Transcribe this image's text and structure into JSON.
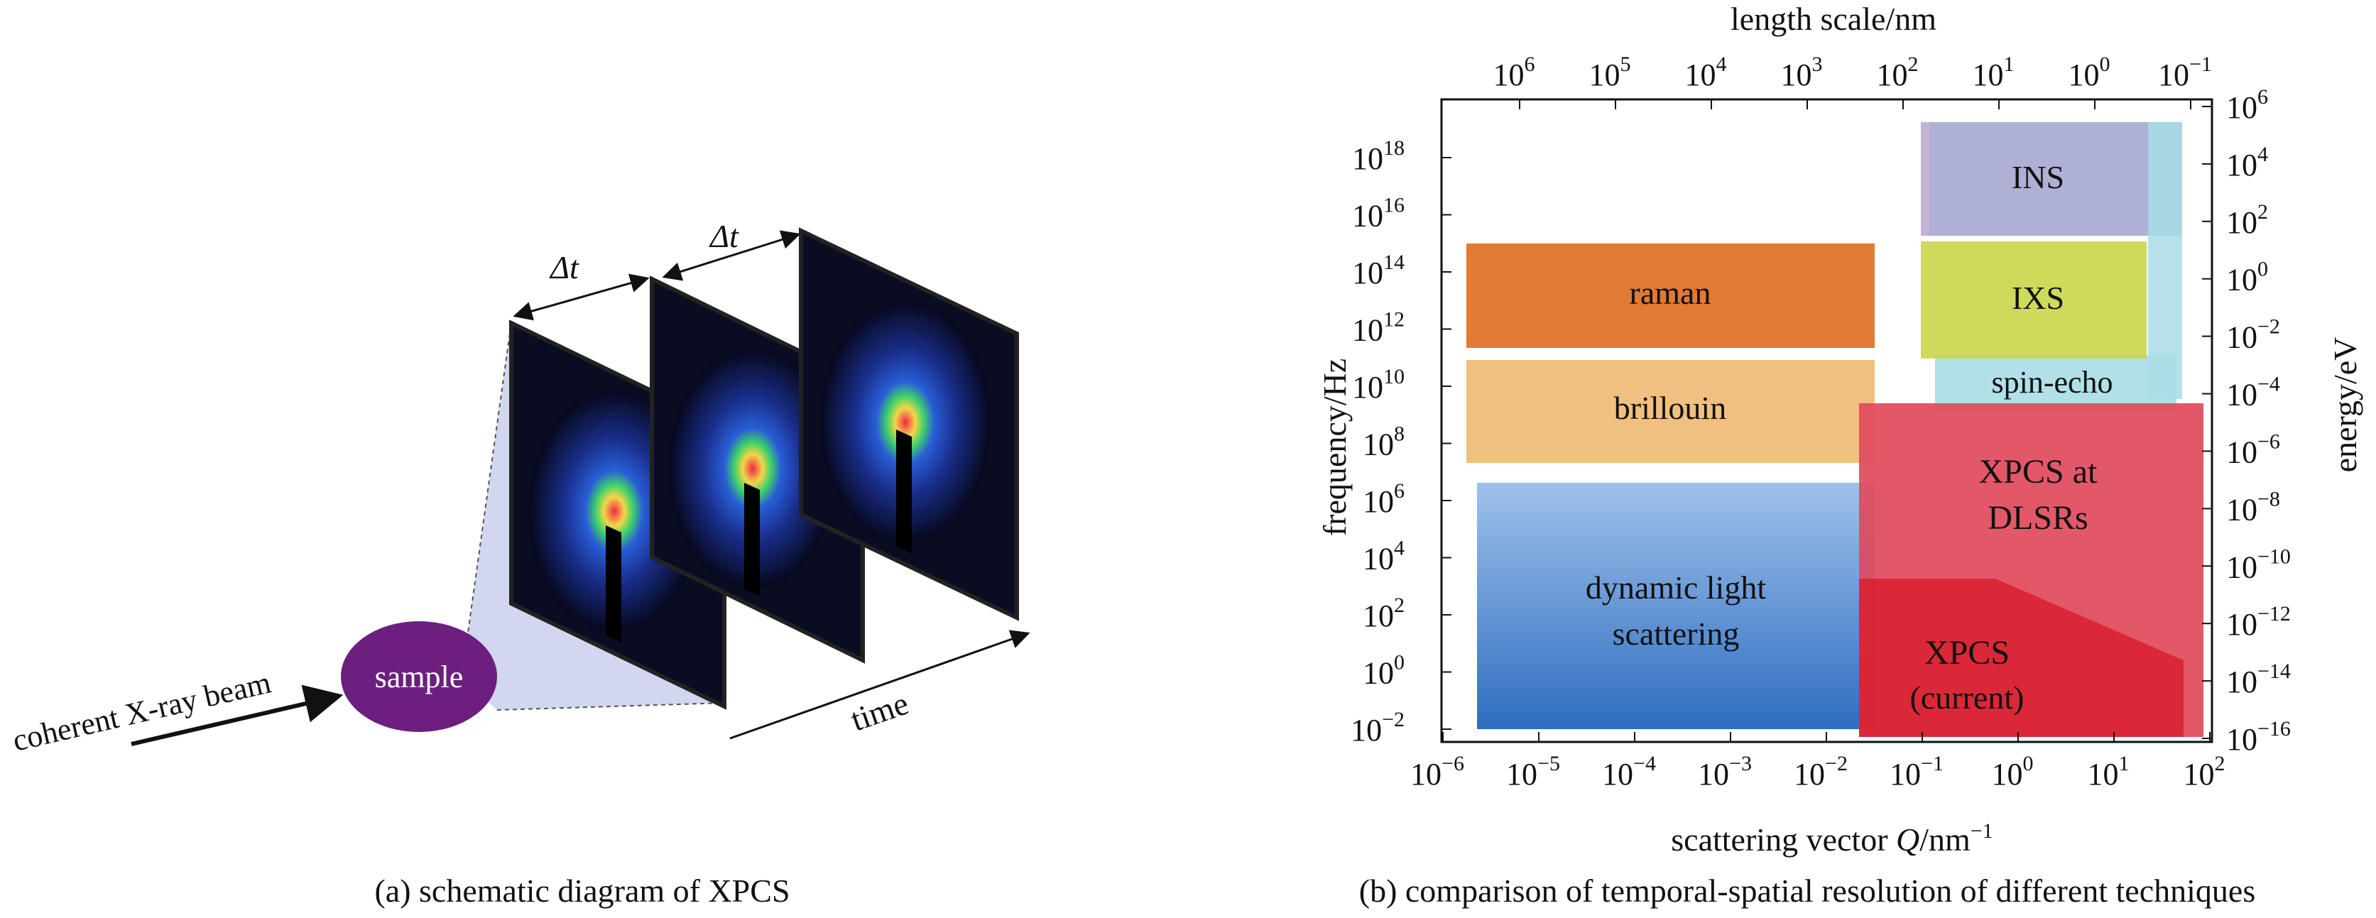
{
  "panel_a": {
    "delta_t": "Δt",
    "sample": "sample",
    "beam": "coherent X-ray beam",
    "time": "time",
    "caption": "(a) schematic diagram of XPCS"
  },
  "panel_b": {
    "top_axis_title": "length scale/nm",
    "bottom_axis_title_prefix": "scattering vector ",
    "bottom_axis_title_var": "Q",
    "bottom_axis_title_unit": "/nm",
    "bottom_axis_title_sup": "−1",
    "left_axis_title": "frequency/Hz",
    "right_axis_title": "energy/eV",
    "caption": "(b) comparison of temporal-spatial resolution of different techniques",
    "bottom_ticks": [
      {
        "m": "10",
        "e": "−6"
      },
      {
        "m": "10",
        "e": "−5"
      },
      {
        "m": "10",
        "e": "−4"
      },
      {
        "m": "10",
        "e": "−3"
      },
      {
        "m": "10",
        "e": "−2"
      },
      {
        "m": "10",
        "e": "−1"
      },
      {
        "m": "10",
        "e": "0"
      },
      {
        "m": "10",
        "e": "1"
      },
      {
        "m": "10",
        "e": "2"
      }
    ],
    "top_ticks": [
      {
        "m": "10",
        "e": "6"
      },
      {
        "m": "10",
        "e": "5"
      },
      {
        "m": "10",
        "e": "4"
      },
      {
        "m": "10",
        "e": "3"
      },
      {
        "m": "10",
        "e": "2"
      },
      {
        "m": "10",
        "e": "1"
      },
      {
        "m": "10",
        "e": "0"
      },
      {
        "m": "10",
        "e": "−1"
      }
    ],
    "left_ticks": [
      {
        "m": "10",
        "e": "18"
      },
      {
        "m": "10",
        "e": "16"
      },
      {
        "m": "10",
        "e": "14"
      },
      {
        "m": "10",
        "e": "12"
      },
      {
        "m": "10",
        "e": "10"
      },
      {
        "m": "10",
        "e": "8"
      },
      {
        "m": "10",
        "e": "6"
      },
      {
        "m": "10",
        "e": "4"
      },
      {
        "m": "10",
        "e": "2"
      },
      {
        "m": "10",
        "e": "0"
      },
      {
        "m": "10",
        "e": "−2"
      }
    ],
    "right_ticks": [
      {
        "m": "10",
        "e": "6"
      },
      {
        "m": "10",
        "e": "4"
      },
      {
        "m": "10",
        "e": "2"
      },
      {
        "m": "10",
        "e": "0"
      },
      {
        "m": "10",
        "e": "−2"
      },
      {
        "m": "10",
        "e": "−4"
      },
      {
        "m": "10",
        "e": "−6"
      },
      {
        "m": "10",
        "e": "−8"
      },
      {
        "m": "10",
        "e": "−10"
      },
      {
        "m": "10",
        "e": "−12"
      },
      {
        "m": "10",
        "e": "−14"
      },
      {
        "m": "10",
        "e": "−16"
      }
    ],
    "regions": {
      "raman": "raman",
      "brillouin": "brillouin",
      "dls_1": "dynamic light",
      "dls_2": "scattering",
      "ins": "INS",
      "ixs": "IXS",
      "spin_echo": "spin-echo",
      "xpcs_dlsr_1": "XPCS at",
      "xpcs_dlsr_2": "DLSRs",
      "xpcs_cur_1": "XPCS",
      "xpcs_cur_2": "(current)"
    }
  }
}
